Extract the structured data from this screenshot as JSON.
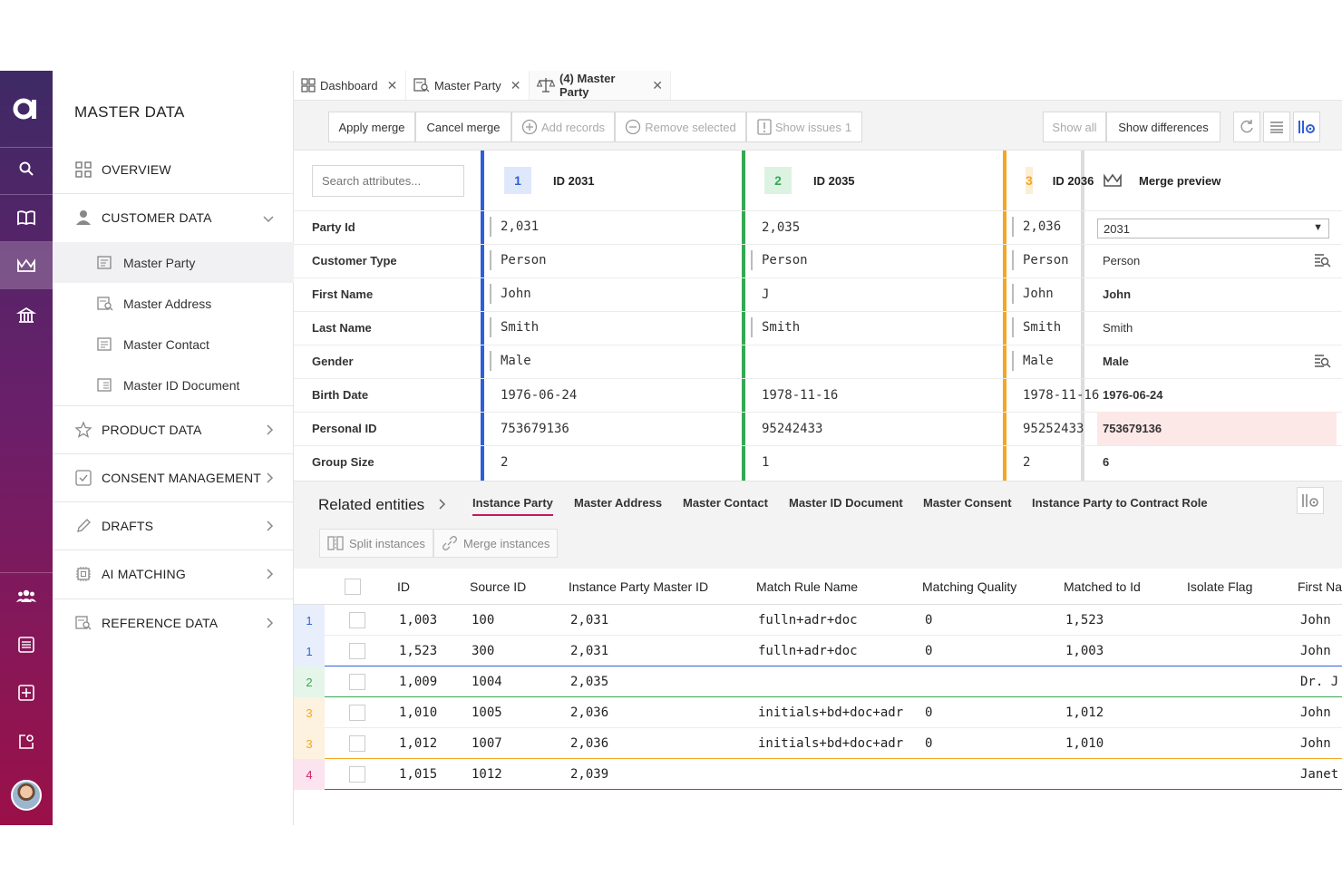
{
  "nav": {
    "title": "MASTER DATA",
    "overview": "OVERVIEW",
    "customer_data": "CUSTOMER DATA",
    "sub": [
      "Master Party",
      "Master Address",
      "Master Contact",
      "Master ID Document"
    ],
    "product_data": "PRODUCT DATA",
    "consent_management": "CONSENT MANAGEMENT",
    "drafts": "DRAFTS",
    "ai_matching": "AI MATCHING",
    "reference_data": "REFERENCE DATA"
  },
  "tabs": [
    {
      "label": "Dashboard",
      "icon": "dashboard-icon"
    },
    {
      "label": "Master Party",
      "icon": "table-icon"
    },
    {
      "label": "(4) Master Party",
      "icon": "scale-icon"
    }
  ],
  "toolbar": {
    "apply_merge": "Apply merge",
    "cancel_merge": "Cancel merge",
    "add_records": "Add records",
    "remove_selected": "Remove selected",
    "show_issues": "Show issues",
    "issues_count": "1",
    "show_all": "Show all",
    "show_differences": "Show differences"
  },
  "compare": {
    "search_placeholder": "Search attributes...",
    "columns": [
      {
        "badge": "1",
        "title": "ID 2031",
        "color": "#2f5fd8",
        "badge_bg": "#dfe8fb"
      },
      {
        "badge": "2",
        "title": "ID 2035",
        "color": "#34a853",
        "badge_bg": "#dcf3e1"
      },
      {
        "badge": "3",
        "title": "ID 2036",
        "color": "#f5a623",
        "badge_bg": "#fdeed6"
      }
    ],
    "merge_title": "Merge preview",
    "merge_select": "2031",
    "attributes": [
      "Party Id",
      "Customer Type",
      "First Name",
      "Last Name",
      "Gender",
      "Birth Date",
      "Personal ID",
      "Group Size"
    ],
    "col1": [
      "2,031",
      "Person",
      "John",
      "Smith",
      "Male",
      "1976-06-24",
      "753679136",
      "2"
    ],
    "col2": [
      "2,035",
      "Person",
      "J",
      "Smith",
      "",
      "1978-11-16",
      "95242433",
      "1"
    ],
    "col3": [
      "2,036",
      "Person",
      "John",
      "Smith",
      "Male",
      "1978-11-16",
      "95252433",
      "2"
    ],
    "merge": [
      "",
      "Person",
      "John",
      "Smith",
      "Male",
      "1976-06-24",
      "753679136",
      "6"
    ]
  },
  "related": {
    "title": "Related entities",
    "tabs": [
      "Instance Party",
      "Master Address",
      "Master Contact",
      "Master ID Document",
      "Master Consent",
      "Instance Party to Contract Role"
    ],
    "split": "Split instances",
    "merge": "Merge instances",
    "headers": [
      "ID",
      "Source ID",
      "Instance Party Master ID",
      "Match Rule Name",
      "Matching Quality",
      "Matched to Id",
      "Isolate Flag",
      "First Na"
    ],
    "rows": [
      {
        "grp": "1",
        "id": "1,003",
        "src": "100",
        "mid": "2,031",
        "rule": "fulln+adr+doc",
        "q": "0",
        "mt": "1,523",
        "iso": "",
        "fn": "John"
      },
      {
        "grp": "1",
        "id": "1,523",
        "src": "300",
        "mid": "2,031",
        "rule": "fulln+adr+doc",
        "q": "0",
        "mt": "1,003",
        "iso": "",
        "fn": "John"
      },
      {
        "grp": "2",
        "id": "1,009",
        "src": "1004",
        "mid": "2,035",
        "rule": "",
        "q": "",
        "mt": "",
        "iso": "",
        "fn": "Dr. J"
      },
      {
        "grp": "3",
        "id": "1,010",
        "src": "1005",
        "mid": "2,036",
        "rule": "initials+bd+doc+adr",
        "q": "0",
        "mt": "1,012",
        "iso": "",
        "fn": "John"
      },
      {
        "grp": "3",
        "id": "1,012",
        "src": "1007",
        "mid": "2,036",
        "rule": "initials+bd+doc+adr",
        "q": "0",
        "mt": "1,010",
        "iso": "",
        "fn": "John"
      },
      {
        "grp": "4",
        "id": "1,015",
        "src": "1012",
        "mid": "2,039",
        "rule": "",
        "q": "",
        "mt": "",
        "iso": "",
        "fn": "Janet"
      }
    ]
  },
  "colors": {
    "blue": "#2f5fd8",
    "green": "#34a853",
    "orange": "#f5a623",
    "pink": "#d6206b",
    "accent": "#c8175d"
  }
}
